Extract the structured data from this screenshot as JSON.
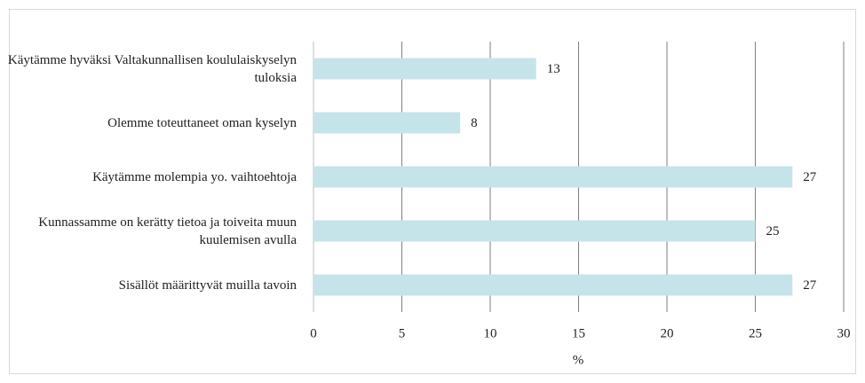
{
  "chart_data": {
    "type": "bar",
    "orientation": "horizontal",
    "categories": [
      "Käytämme hyväksi Valtakunnallisen koululaiskyselyn tuloksia",
      "Olemme toteuttaneet oman kyselyn",
      "Käytämme molempia yo. vaihtoehtoja",
      "Kunnassamme on kerätty tietoa ja toiveita muun kuulemisen avulla",
      "Sisällöt määrittyvät muilla tavoin"
    ],
    "values": [
      12.6,
      8.3,
      27.1,
      25,
      27.1
    ],
    "value_labels": [
      "13",
      "8",
      "27",
      "25",
      "27"
    ],
    "color": "#c5e4ea",
    "xlim": [
      0,
      30
    ],
    "xticks": [
      0,
      5,
      10,
      15,
      20,
      25,
      30
    ],
    "xlabel": "%",
    "grid": true
  }
}
